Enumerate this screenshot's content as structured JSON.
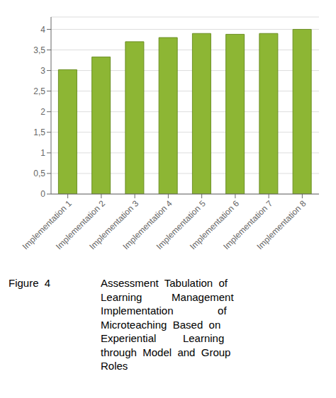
{
  "chart_data": {
    "type": "bar",
    "categories": [
      "Implementation 1",
      "Implementation 2",
      "Implementation 3",
      "Implementation 4",
      "Implementation 5",
      "Implementation 6",
      "Implementation 7",
      "Implementation 8"
    ],
    "values": [
      3.02,
      3.33,
      3.7,
      3.8,
      3.9,
      3.88,
      3.9,
      4.0
    ],
    "color": "#8DB634",
    "ylim": [
      0,
      4.3
    ],
    "yticks": [
      0,
      {
        "value": 0.5,
        "label": "0,5"
      },
      1,
      {
        "value": 1.5,
        "label": "1,5"
      },
      2,
      {
        "value": 2.5,
        "label": "2,5"
      },
      3,
      {
        "value": 3.5,
        "label": "3,5"
      },
      4
    ],
    "grid": true,
    "annotations": [
      "Figure  4",
      "Assessment  Tabulation  of",
      "Learning          Management",
      "Implementation               of",
      "Microteaching  Based  on",
      "Experiential         Learning",
      "through  Model  and  Group",
      "Roles"
    ]
  }
}
